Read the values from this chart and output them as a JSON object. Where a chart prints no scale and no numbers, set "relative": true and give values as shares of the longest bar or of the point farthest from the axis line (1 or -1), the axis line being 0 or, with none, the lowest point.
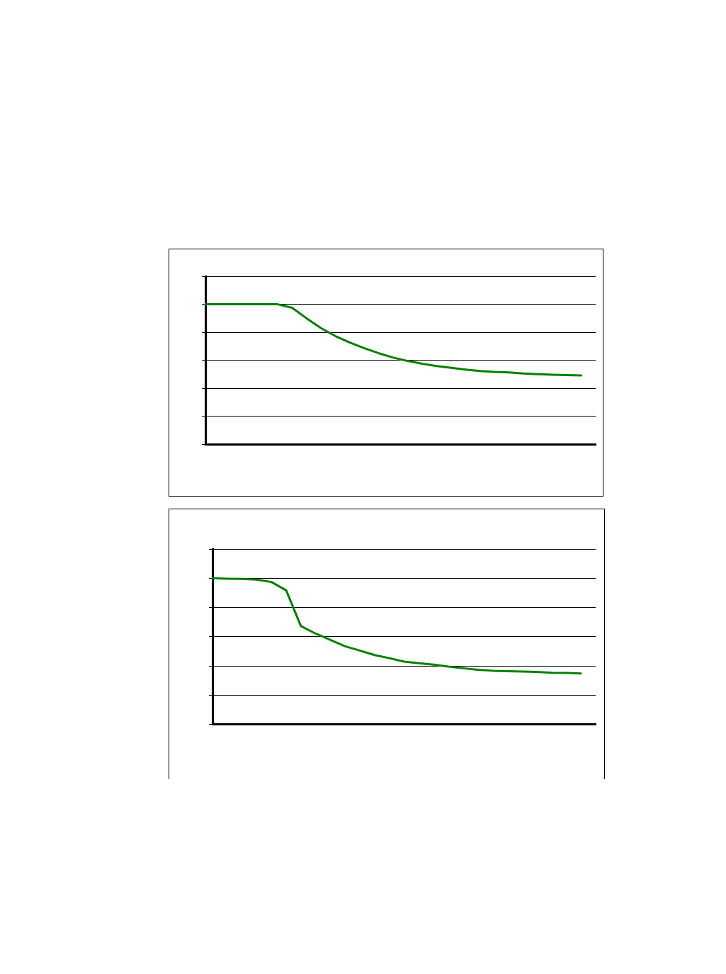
{
  "chart_data": [
    {
      "type": "line",
      "relative": true,
      "grid": "y",
      "categories": [
        null,
        null,
        null,
        null,
        null,
        null,
        null,
        null,
        null,
        null,
        null,
        null,
        null,
        null,
        null,
        null,
        null,
        null,
        null,
        null,
        null,
        null,
        null,
        null,
        null,
        null,
        null,
        null
      ],
      "series": [
        {
          "color": "#008000",
          "values": [
            1,
            1,
            1,
            1,
            1,
            1,
            0.975,
            0.9,
            0.83,
            0.773,
            0.727,
            0.687,
            0.651,
            0.62,
            0.596,
            0.576,
            0.56,
            0.547,
            0.535,
            0.524,
            0.518,
            0.515,
            0.507,
            0.502,
            0.498,
            0.496,
            0.493,
            null
          ]
        }
      ]
    },
    {
      "type": "line",
      "relative": true,
      "grid": "y",
      "categories": [
        null,
        null,
        null,
        null,
        null,
        null,
        null,
        null,
        null,
        null,
        null,
        null,
        null,
        null,
        null,
        null,
        null,
        null,
        null,
        null,
        null,
        null,
        null,
        null,
        null,
        null,
        null
      ],
      "series": [
        {
          "color": "#008000",
          "values": [
            1,
            0.997,
            0.995,
            0.99,
            0.974,
            0.917,
            0.672,
            0.621,
            0.578,
            0.534,
            0.505,
            0.474,
            0.453,
            0.429,
            0.419,
            0.409,
            0.395,
            0.384,
            0.374,
            0.367,
            0.364,
            0.362,
            0.359,
            0.353,
            0.352,
            0.348,
            null
          ]
        }
      ]
    }
  ]
}
